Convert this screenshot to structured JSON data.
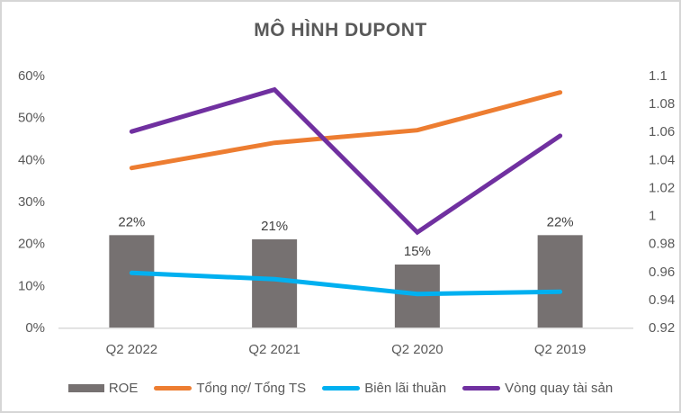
{
  "title": "MÔ HÌNH DUPONT",
  "chart_data": {
    "type": "combo",
    "title": "MÔ HÌNH DUPONT",
    "categories": [
      "Q2 2022",
      "Q2 2021",
      "Q2 2020",
      "Q2 2019"
    ],
    "series": [
      {
        "name": "ROE",
        "type": "bar",
        "axis": "left",
        "color": "#767171",
        "values": [
          0.22,
          0.21,
          0.15,
          0.22
        ],
        "data_labels": [
          "22%",
          "21%",
          "15%",
          "22%"
        ]
      },
      {
        "name": "Tổng nợ/ Tổng TS",
        "type": "line",
        "axis": "left",
        "color": "#ED7D31",
        "values": [
          0.38,
          0.44,
          0.47,
          0.56
        ]
      },
      {
        "name": "Biên lãi thuần",
        "type": "line",
        "axis": "left",
        "color": "#00B0F0",
        "values": [
          0.13,
          0.115,
          0.08,
          0.085
        ]
      },
      {
        "name": "Vòng quay tài sản",
        "type": "line",
        "axis": "right",
        "color": "#7030A0",
        "values": [
          1.06,
          1.09,
          0.988,
          1.057
        ]
      }
    ],
    "left_axis": {
      "min": 0,
      "max": 0.6,
      "ticks": [
        "60%",
        "50%",
        "40%",
        "30%",
        "20%",
        "10%",
        "0%"
      ]
    },
    "right_axis": {
      "min": 0.92,
      "max": 1.1,
      "ticks": [
        "1.1",
        "1.08",
        "1.06",
        "1.04",
        "1.02",
        "1",
        "0.98",
        "0.96",
        "0.94",
        "0.92"
      ]
    },
    "legend_position": "bottom",
    "grid": false
  },
  "colors": {
    "background": "#FFFFFF",
    "border": "#D6D6D6",
    "title_text": "#595959",
    "axis_text": "#595959",
    "data_label_text": "#404040",
    "axis_line": "#D9D9D9"
  }
}
